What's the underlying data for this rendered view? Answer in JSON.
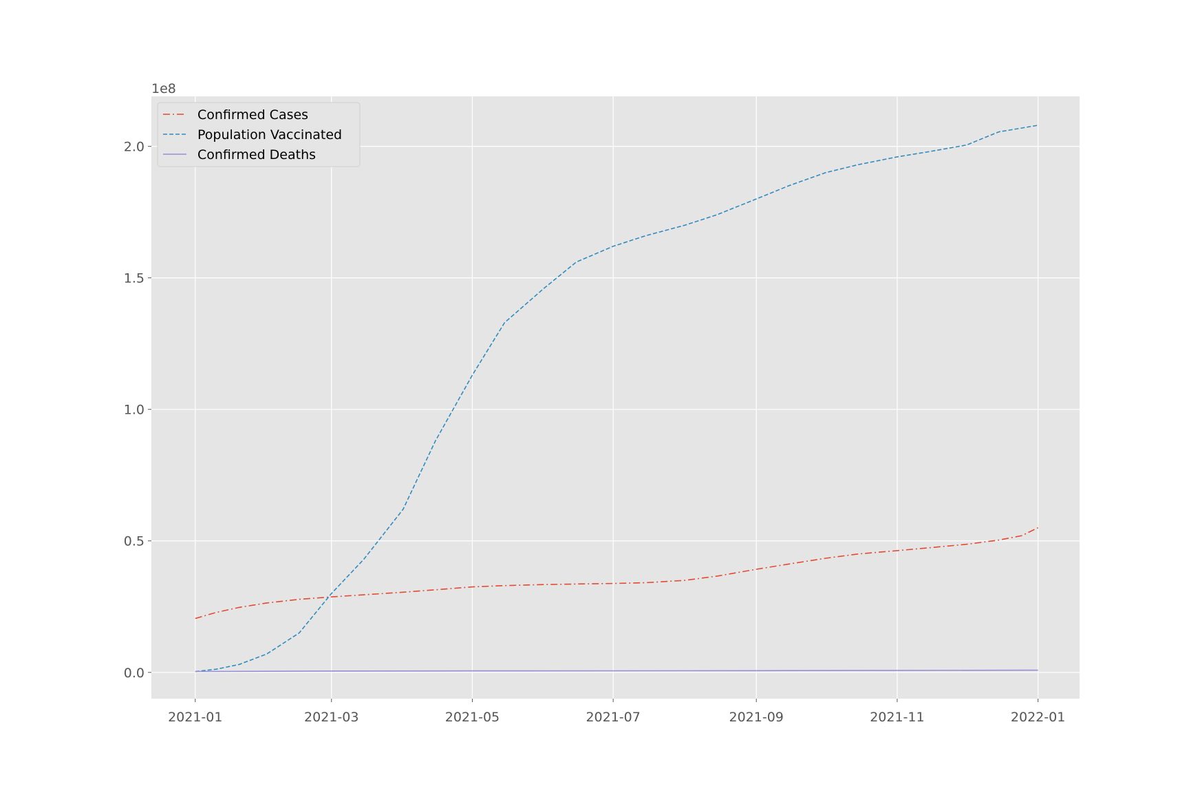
{
  "chart_data": {
    "type": "line",
    "title": "",
    "xlabel": "",
    "ylabel": "",
    "y_offset_label": "1e8",
    "y_scale": 100000000,
    "xlim": [
      "2020-12-13",
      "2022-01-19"
    ],
    "ylim": [
      -0.1,
      2.19
    ],
    "x_ticks": [
      "2021-01-01",
      "2021-03-01",
      "2021-05-01",
      "2021-07-01",
      "2021-09-01",
      "2021-11-01",
      "2022-01-01"
    ],
    "x_tick_labels": [
      "2021-01",
      "2021-03",
      "2021-05",
      "2021-07",
      "2021-09",
      "2021-11",
      "2022-01"
    ],
    "y_ticks": [
      0.0,
      0.5,
      1.0,
      1.5,
      2.0
    ],
    "y_tick_labels": [
      "0.0",
      "0.5",
      "1.0",
      "1.5",
      "2.0"
    ],
    "grid": true,
    "legend_position": "top-left",
    "background": "#e5e5e5",
    "series": [
      {
        "name": "Confirmed Cases",
        "color": "#e24a33",
        "dash": "dashdot",
        "points": [
          [
            "2021-01-01",
            0.205
          ],
          [
            "2021-01-10",
            0.228
          ],
          [
            "2021-01-20",
            0.247
          ],
          [
            "2021-02-01",
            0.264
          ],
          [
            "2021-02-15",
            0.278
          ],
          [
            "2021-03-01",
            0.287
          ],
          [
            "2021-03-15",
            0.295
          ],
          [
            "2021-04-01",
            0.305
          ],
          [
            "2021-04-15",
            0.314
          ],
          [
            "2021-05-01",
            0.325
          ],
          [
            "2021-05-15",
            0.33
          ],
          [
            "2021-06-01",
            0.334
          ],
          [
            "2021-06-15",
            0.336
          ],
          [
            "2021-07-01",
            0.338
          ],
          [
            "2021-07-15",
            0.341
          ],
          [
            "2021-08-01",
            0.35
          ],
          [
            "2021-08-15",
            0.366
          ],
          [
            "2021-09-01",
            0.392
          ],
          [
            "2021-09-15",
            0.412
          ],
          [
            "2021-10-01",
            0.434
          ],
          [
            "2021-10-15",
            0.45
          ],
          [
            "2021-11-01",
            0.463
          ],
          [
            "2021-11-15",
            0.474
          ],
          [
            "2021-12-01",
            0.487
          ],
          [
            "2021-12-15",
            0.503
          ],
          [
            "2021-12-25",
            0.52
          ],
          [
            "2022-01-01",
            0.55
          ]
        ]
      },
      {
        "name": "Population Vaccinated",
        "color": "#348abd",
        "dash": "dashed",
        "points": [
          [
            "2021-01-01",
            0.003
          ],
          [
            "2021-01-10",
            0.012
          ],
          [
            "2021-01-20",
            0.03
          ],
          [
            "2021-02-01",
            0.07
          ],
          [
            "2021-02-15",
            0.15
          ],
          [
            "2021-03-01",
            0.3
          ],
          [
            "2021-03-15",
            0.43
          ],
          [
            "2021-04-01",
            0.62
          ],
          [
            "2021-04-15",
            0.88
          ],
          [
            "2021-05-01",
            1.13
          ],
          [
            "2021-05-15",
            1.33
          ],
          [
            "2021-06-01",
            1.46
          ],
          [
            "2021-06-15",
            1.56
          ],
          [
            "2021-07-01",
            1.62
          ],
          [
            "2021-07-15",
            1.66
          ],
          [
            "2021-08-01",
            1.7
          ],
          [
            "2021-08-15",
            1.74
          ],
          [
            "2021-09-01",
            1.8
          ],
          [
            "2021-09-15",
            1.85
          ],
          [
            "2021-10-01",
            1.9
          ],
          [
            "2021-10-15",
            1.93
          ],
          [
            "2021-11-01",
            1.96
          ],
          [
            "2021-11-15",
            1.98
          ],
          [
            "2021-12-01",
            2.005
          ],
          [
            "2021-12-15",
            2.055
          ],
          [
            "2022-01-01",
            2.08
          ]
        ]
      },
      {
        "name": "Confirmed Deaths",
        "color": "#988ed5",
        "dash": "solid",
        "points": [
          [
            "2021-01-01",
            0.0035
          ],
          [
            "2021-03-01",
            0.0051
          ],
          [
            "2021-05-01",
            0.0058
          ],
          [
            "2021-07-01",
            0.0061
          ],
          [
            "2021-09-01",
            0.0065
          ],
          [
            "2021-11-01",
            0.0075
          ],
          [
            "2022-01-01",
            0.0083
          ]
        ]
      }
    ]
  }
}
